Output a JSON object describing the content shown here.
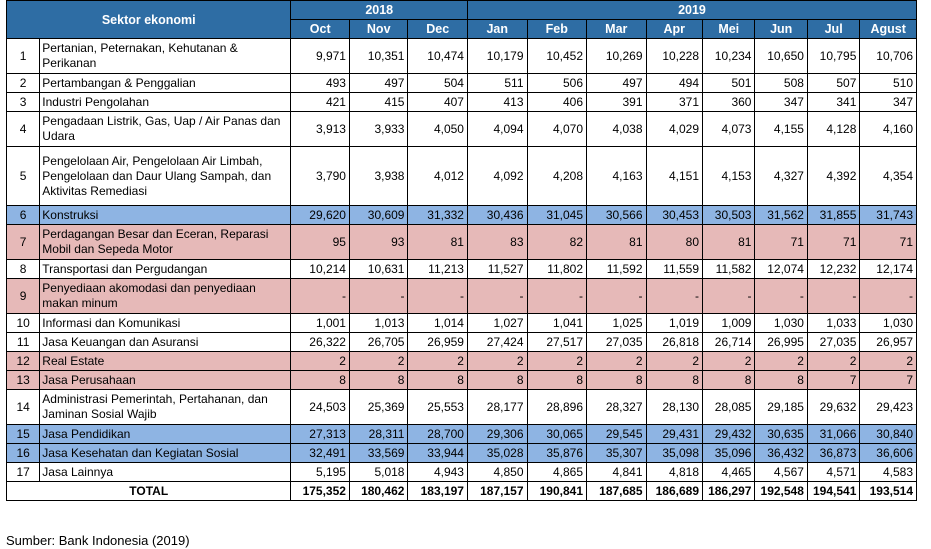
{
  "header": {
    "sector_label": "Sektor ekonomi",
    "year_2018": "2018",
    "year_2019": "2019",
    "months": [
      "Oct",
      "Nov",
      "Dec",
      "Jan",
      "Feb",
      "Mar",
      "Apr",
      "Mei",
      "Jun",
      "Jul",
      "Agust"
    ]
  },
  "colors": {
    "header": "#2e6da4",
    "blue_row": "#8eb4e3",
    "pink_row": "#e6b9b8"
  },
  "rows": [
    {
      "no": "1",
      "name": "Pertanian, Peternakan, Kehutanan & Perikanan",
      "style": "plain",
      "lines": 2,
      "values": [
        "9,971",
        "10,351",
        "10,474",
        "10,179",
        "10,452",
        "10,269",
        "10,228",
        "10,234",
        "10,650",
        "10,795",
        "10,706"
      ]
    },
    {
      "no": "2",
      "name": "Pertambangan & Penggalian",
      "style": "plain",
      "lines": 1,
      "values": [
        "493",
        "497",
        "504",
        "511",
        "506",
        "497",
        "494",
        "501",
        "508",
        "507",
        "510"
      ]
    },
    {
      "no": "3",
      "name": "Industri Pengolahan",
      "style": "plain",
      "lines": 1,
      "values": [
        "421",
        "415",
        "407",
        "413",
        "406",
        "391",
        "371",
        "360",
        "347",
        "341",
        "347"
      ]
    },
    {
      "no": "4",
      "name": "Pengadaan Listrik, Gas, Uap / Air Panas dan Udara",
      "style": "plain",
      "lines": 2,
      "values": [
        "3,913",
        "3,933",
        "4,050",
        "4,094",
        "4,070",
        "4,038",
        "4,029",
        "4,073",
        "4,155",
        "4,128",
        "4,160"
      ]
    },
    {
      "no": "5",
      "name": "Pengelolaan Air, Pengelolaan Air Limbah, Pengelolaan dan Daur Ulang Sampah, dan Aktivitas Remediasi",
      "style": "plain",
      "lines": 3,
      "values": [
        "3,790",
        "3,938",
        "4,012",
        "4,092",
        "4,208",
        "4,163",
        "4,151",
        "4,153",
        "4,327",
        "4,392",
        "4,354"
      ]
    },
    {
      "no": "6",
      "name": "Konstruksi",
      "style": "blue",
      "lines": 1,
      "values": [
        "29,620",
        "30,609",
        "31,332",
        "30,436",
        "31,045",
        "30,566",
        "30,453",
        "30,503",
        "31,562",
        "31,855",
        "31,743"
      ]
    },
    {
      "no": "7",
      "name": "Perdagangan Besar dan Eceran, Reparasi Mobil dan Sepeda Motor",
      "style": "pink",
      "lines": 2,
      "values": [
        "95",
        "93",
        "81",
        "83",
        "82",
        "81",
        "80",
        "81",
        "71",
        "71",
        "71"
      ]
    },
    {
      "no": "8",
      "name": "Transportasi dan Pergudangan",
      "style": "plain",
      "lines": 1,
      "values": [
        "10,214",
        "10,631",
        "11,213",
        "11,527",
        "11,802",
        "11,592",
        "11,559",
        "11,582",
        "12,074",
        "12,232",
        "12,174"
      ]
    },
    {
      "no": "9",
      "name": "Penyediaan akomodasi dan penyediaan makan minum",
      "style": "pink",
      "lines": 2,
      "values": [
        "-",
        "-",
        "-",
        "-",
        "-",
        "-",
        "-",
        "-",
        "-",
        "-",
        "-"
      ]
    },
    {
      "no": "10",
      "name": "Informasi dan Komunikasi",
      "style": "plain",
      "lines": 1,
      "values": [
        "1,001",
        "1,013",
        "1,014",
        "1,027",
        "1,041",
        "1,025",
        "1,019",
        "1,009",
        "1,030",
        "1,033",
        "1,030"
      ]
    },
    {
      "no": "11",
      "name": "Jasa Keuangan dan Asuransi",
      "style": "plain",
      "lines": 1,
      "values": [
        "26,322",
        "26,705",
        "26,959",
        "27,424",
        "27,517",
        "27,035",
        "26,818",
        "26,714",
        "26,995",
        "27,035",
        "26,957"
      ]
    },
    {
      "no": "12",
      "name": "Real Estate",
      "style": "pink",
      "lines": 1,
      "values": [
        "2",
        "2",
        "2",
        "2",
        "2",
        "2",
        "2",
        "2",
        "2",
        "2",
        "2"
      ]
    },
    {
      "no": "13",
      "name": "Jasa Perusahaan",
      "style": "pink",
      "lines": 1,
      "values": [
        "8",
        "8",
        "8",
        "8",
        "8",
        "8",
        "8",
        "8",
        "8",
        "7",
        "7"
      ]
    },
    {
      "no": "14",
      "name": "Administrasi Pemerintah, Pertahanan, dan Jaminan Sosial Wajib",
      "style": "plain",
      "lines": 2,
      "values": [
        "24,503",
        "25,369",
        "25,553",
        "28,177",
        "28,896",
        "28,327",
        "28,130",
        "28,085",
        "29,185",
        "29,632",
        "29,423"
      ]
    },
    {
      "no": "15",
      "name": "Jasa Pendidikan",
      "style": "blue",
      "lines": 1,
      "values": [
        "27,313",
        "28,311",
        "28,700",
        "29,306",
        "30,065",
        "29,545",
        "29,431",
        "29,432",
        "30,635",
        "31,066",
        "30,840"
      ]
    },
    {
      "no": "16",
      "name": "Jasa Kesehatan dan Kegiatan Sosial",
      "style": "blue",
      "lines": 1,
      "values": [
        "32,491",
        "33,569",
        "33,944",
        "35,028",
        "35,876",
        "35,307",
        "35,098",
        "35,096",
        "36,432",
        "36,873",
        "36,606"
      ]
    },
    {
      "no": "17",
      "name": "Jasa Lainnya",
      "style": "plain",
      "lines": 1,
      "values": [
        "5,195",
        "5,018",
        "4,943",
        "4,850",
        "4,865",
        "4,841",
        "4,818",
        "4,465",
        "4,567",
        "4,571",
        "4,583"
      ]
    }
  ],
  "total": {
    "label": "TOTAL",
    "values": [
      "175,352",
      "180,462",
      "183,197",
      "187,157",
      "190,841",
      "187,685",
      "186,689",
      "186,297",
      "192,548",
      "194,541",
      "193,514"
    ]
  },
  "source": "Sumber: Bank Indonesia (2019)"
}
